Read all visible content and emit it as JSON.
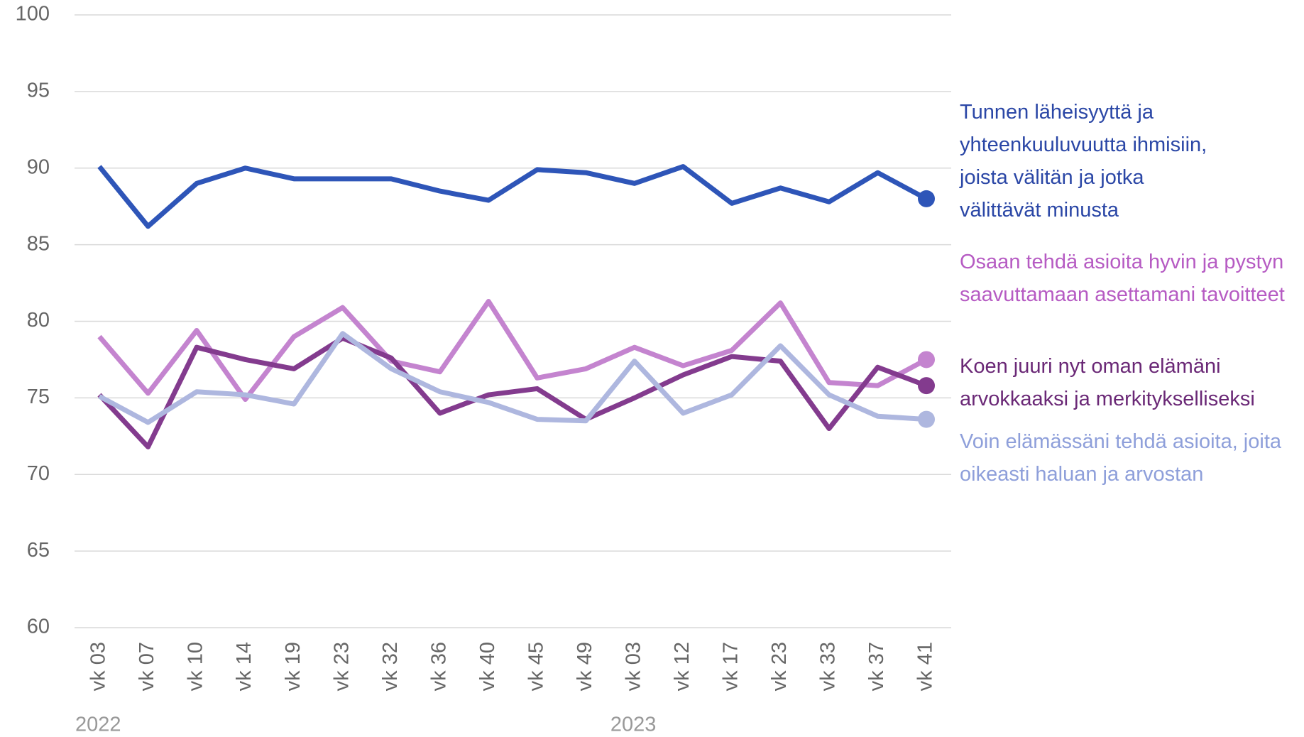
{
  "chart_data": {
    "type": "line",
    "categories": [
      "vk 03",
      "vk 07",
      "vk 10",
      "vk 14",
      "vk 19",
      "vk 23",
      "vk 32",
      "vk 36",
      "vk 40",
      "vk 45",
      "vk 49",
      "vk 03",
      "vk 12",
      "vk 17",
      "vk 23",
      "vk 33",
      "vk 37",
      "vk 41"
    ],
    "x_groups": [
      {
        "label": "2022",
        "start": 0
      },
      {
        "label": "2023",
        "start": 11
      }
    ],
    "ylim": [
      60,
      100
    ],
    "yticks": [
      60,
      65,
      70,
      75,
      80,
      85,
      90,
      95,
      100
    ],
    "grid": true,
    "legend": "right",
    "series": [
      {
        "name": "Tunnen läheisyyttä ja yhteenkuuluvuutta ihmisiin, joista välitän ja jotka välittävät minusta",
        "color": "#2e55b8",
        "label_color": "#2b47a6",
        "values": [
          90.1,
          86.2,
          89.0,
          90.0,
          89.3,
          89.3,
          89.3,
          88.5,
          87.9,
          89.9,
          89.7,
          89.0,
          90.1,
          87.7,
          88.7,
          87.8,
          89.7,
          88.0
        ]
      },
      {
        "name": "Osaan tehdä asioita hyvin ja pystyn saavuttamaan asettamani tavoitteet",
        "color": "#c484cf",
        "label_color": "#b65bc3",
        "values": [
          79.0,
          75.3,
          79.4,
          74.9,
          79.0,
          80.9,
          77.4,
          76.7,
          81.3,
          76.3,
          76.9,
          78.3,
          77.1,
          78.1,
          81.2,
          76.0,
          75.8,
          77.5
        ]
      },
      {
        "name": "Koen juuri nyt oman elämäni arvokkaaksi ja merkitykselliseksi",
        "color": "#833b8e",
        "label_color": "#6a2876",
        "values": [
          75.2,
          71.8,
          78.3,
          77.5,
          76.9,
          78.9,
          77.6,
          74.0,
          75.2,
          75.6,
          73.6,
          75.0,
          76.5,
          77.7,
          77.4,
          73.0,
          77.0,
          75.8
        ]
      },
      {
        "name": "Voin elämässäni tehdä asioita, joita oikeasti haluan ja arvostan",
        "color": "#aeb7df",
        "label_color": "#8e9fda",
        "values": [
          75.1,
          73.4,
          75.4,
          75.2,
          74.6,
          79.2,
          76.9,
          75.4,
          74.7,
          73.6,
          73.5,
          77.4,
          74.0,
          75.2,
          78.4,
          75.2,
          73.8,
          73.6
        ]
      }
    ]
  }
}
